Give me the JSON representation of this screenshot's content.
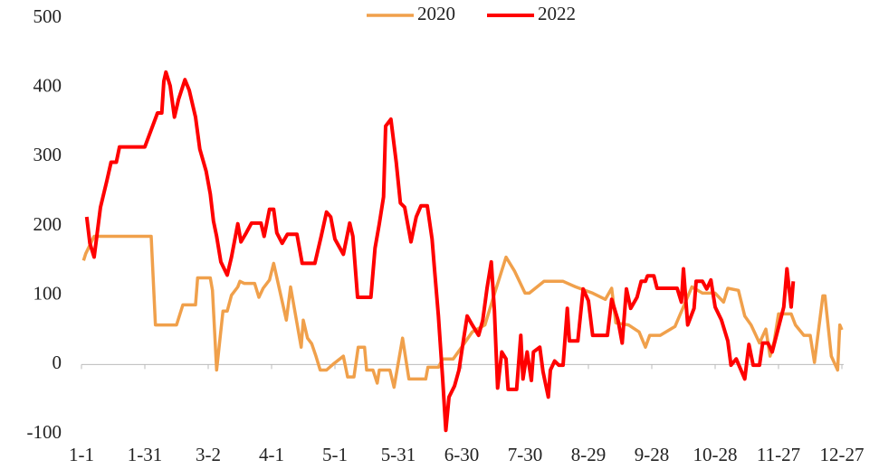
{
  "chart_data": {
    "type": "line",
    "xlim": [
      0,
      360
    ],
    "xticks": [
      {
        "value": 0,
        "label": "1-1"
      },
      {
        "value": 30,
        "label": "1-31"
      },
      {
        "value": 60,
        "label": "3-2"
      },
      {
        "value": 90,
        "label": "4-1"
      },
      {
        "value": 120,
        "label": "5-1"
      },
      {
        "value": 150,
        "label": "5-31"
      },
      {
        "value": 180,
        "label": "6-30"
      },
      {
        "value": 210,
        "label": "7-30"
      },
      {
        "value": 240,
        "label": "8-29"
      },
      {
        "value": 270,
        "label": "9-28"
      },
      {
        "value": 300,
        "label": "10-28"
      },
      {
        "value": 330,
        "label": "11-27"
      },
      {
        "value": 360,
        "label": "12-27"
      }
    ],
    "ylim": [
      -100,
      500
    ],
    "yticks": [
      -100,
      0,
      100,
      200,
      300,
      400,
      500
    ],
    "legend": "top",
    "series": [
      {
        "name": "2020",
        "color": "#f0a04b",
        "x": [
          1,
          2,
          6,
          33,
          35,
          45,
          48,
          54,
          55,
          61,
          62,
          64,
          67,
          69,
          71,
          74,
          75,
          77,
          82,
          84,
          86,
          89,
          91,
          97,
          99,
          104,
          105,
          107,
          109,
          111,
          113,
          116,
          119,
          124,
          126,
          129,
          131,
          134,
          135,
          138,
          140,
          141,
          146,
          148,
          152,
          155,
          163,
          164,
          169,
          171,
          176,
          180,
          185,
          191,
          195,
          201,
          205,
          210,
          212,
          219,
          228,
          234,
          242,
          248,
          251,
          253,
          259,
          264,
          267,
          269,
          274,
          281,
          289,
          294,
          300,
          304,
          306,
          311,
          314,
          317,
          321,
          324,
          326,
          328,
          330,
          336,
          338,
          342,
          345,
          347,
          351,
          352,
          355,
          358,
          359,
          360
        ],
        "values": [
          150,
          160,
          185,
          185,
          57,
          57,
          86,
          86,
          125,
          125,
          107,
          -8,
          77,
          77,
          100,
          112,
          120,
          117,
          117,
          97,
          110,
          122,
          146,
          64,
          112,
          25,
          64,
          38,
          30,
          12,
          -8,
          -8,
          0,
          12,
          -18,
          -18,
          25,
          25,
          -8,
          -8,
          -27,
          -8,
          -8,
          -33,
          38,
          -21,
          -21,
          -4,
          -4,
          8,
          8,
          25,
          47,
          57,
          97,
          155,
          135,
          103,
          103,
          120,
          120,
          112,
          103,
          94,
          110,
          60,
          57,
          47,
          25,
          42,
          42,
          55,
          112,
          103,
          103,
          90,
          110,
          107,
          70,
          57,
          31,
          51,
          12,
          34,
          73,
          73,
          57,
          42,
          42,
          3,
          99,
          99,
          12,
          -8,
          57,
          50
        ]
      },
      {
        "name": "2022",
        "color": "#ff0000",
        "x": [
          2.5,
          4,
          6,
          9,
          12,
          14,
          16.5,
          18,
          30,
          36,
          38,
          39,
          40,
          42,
          44,
          46,
          49,
          51,
          54,
          56,
          59,
          61,
          62.5,
          64,
          66,
          69,
          71,
          74,
          75.5,
          78,
          80.5,
          85,
          86.5,
          89,
          91,
          92.5,
          95,
          97.5,
          102,
          104.5,
          110.5,
          113.5,
          116,
          118,
          120,
          124,
          127,
          128.5,
          130.7,
          137,
          139,
          141,
          143,
          144,
          146.5,
          149,
          151,
          153,
          156,
          158.5,
          160.7,
          163.7,
          166,
          167,
          169,
          171,
          172.5,
          174,
          176.6,
          178.7,
          181,
          182.6,
          185,
          188,
          190,
          192,
          194,
          195.5,
          197,
          199,
          201,
          202,
          206,
          208,
          209,
          211,
          213,
          214,
          217,
          218.5,
          221,
          222,
          224,
          226,
          228,
          230,
          231,
          235,
          237.5,
          240,
          242,
          249,
          251,
          254,
          256,
          258,
          260,
          263,
          265,
          267,
          268,
          271,
          272.5,
          282,
          284,
          285,
          287,
          290,
          291,
          294,
          296,
          298,
          300,
          303,
          306,
          307.5,
          310,
          314,
          316,
          318,
          321,
          322.5,
          325,
          327,
          329,
          332.5,
          334,
          336,
          337
        ],
        "values": [
          213,
          175,
          155,
          227,
          265,
          292,
          292,
          314,
          314,
          363,
          363,
          409,
          422,
          402,
          357,
          383,
          411,
          396,
          357,
          311,
          279,
          246,
          207,
          185,
          148,
          129,
          155,
          203,
          177,
          190,
          204,
          204,
          185,
          224,
          224,
          190,
          175,
          188,
          188,
          146,
          146,
          185,
          220,
          213,
          181,
          159,
          204,
          185,
          97,
          97,
          168,
          203,
          242,
          344,
          354,
          292,
          233,
          227,
          177,
          213,
          229,
          229,
          181,
          142,
          70,
          -21,
          -95,
          -47,
          -31,
          -8,
          38,
          70,
          57,
          42,
          64,
          110,
          148,
          77,
          -34,
          18,
          8,
          -36,
          -36,
          42,
          -21,
          18,
          -23,
          18,
          25,
          -10,
          -47,
          -8,
          5,
          -1,
          -1,
          81,
          34,
          34,
          109,
          92,
          42,
          42,
          94,
          64,
          31,
          109,
          81,
          97,
          120,
          120,
          128,
          128,
          110,
          110,
          90,
          138,
          57,
          81,
          120,
          120,
          109,
          122,
          83,
          64,
          34,
          -1,
          8,
          -21,
          29,
          -1,
          -1,
          31,
          31,
          18,
          42,
          83,
          138,
          83,
          120
        ]
      }
    ]
  }
}
